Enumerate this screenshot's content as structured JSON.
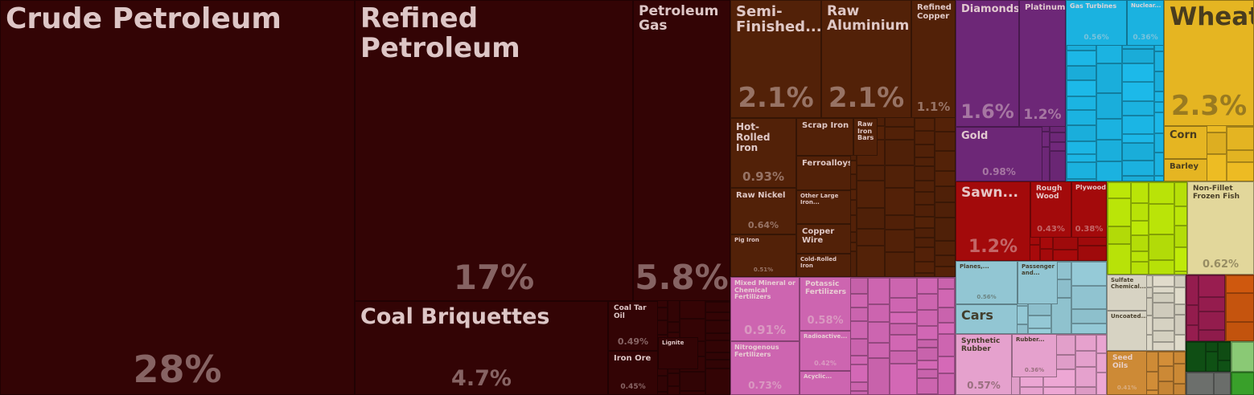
{
  "chart_data": {
    "type": "treemap",
    "title": "",
    "items": [
      {
        "name": "Crude Petroleum",
        "value": 28,
        "label": "28%",
        "group": "mineral"
      },
      {
        "name": "Refined Petroleum",
        "value": 17,
        "label": "17%",
        "group": "mineral"
      },
      {
        "name": "Petroleum Gas",
        "value": 5.8,
        "label": "5.8%",
        "group": "mineral"
      },
      {
        "name": "Coal Briquettes",
        "value": 4.7,
        "label": "4.7%",
        "group": "mineral"
      },
      {
        "name": "Coal Tar Oil",
        "value": 0.49,
        "label": "0.49%",
        "group": "mineral"
      },
      {
        "name": "Iron Ore",
        "value": 0.45,
        "label": "0.45%",
        "group": "mineral"
      },
      {
        "name": "Lignite",
        "value": null,
        "label": "",
        "group": "mineral"
      },
      {
        "name": "Semi-Finished...",
        "value": 2.1,
        "label": "2.1%",
        "group": "metals"
      },
      {
        "name": "Raw Aluminium",
        "value": 2.1,
        "label": "2.1%",
        "group": "metals"
      },
      {
        "name": "Refined Copper",
        "value": 1.1,
        "label": "1.1%",
        "group": "metals"
      },
      {
        "name": "Hot-Rolled Iron",
        "value": 0.93,
        "label": "0.93%",
        "group": "metals"
      },
      {
        "name": "Scrap Iron",
        "value": null,
        "label": "",
        "group": "metals"
      },
      {
        "name": "Raw Iron Bars",
        "value": null,
        "label": "",
        "group": "metals"
      },
      {
        "name": "Ferroalloys",
        "value": null,
        "label": "",
        "group": "metals"
      },
      {
        "name": "Raw Nickel",
        "value": 0.64,
        "label": "0.64%",
        "group": "metals"
      },
      {
        "name": "Other Large Iron...",
        "value": null,
        "label": "",
        "group": "metals"
      },
      {
        "name": "Copper Wire",
        "value": null,
        "label": "",
        "group": "metals"
      },
      {
        "name": "Pig Iron",
        "value": 0.51,
        "label": "0.51%",
        "group": "metals"
      },
      {
        "name": "Cold-Rolled Iron",
        "value": null,
        "label": "",
        "group": "metals"
      },
      {
        "name": "Diamonds",
        "value": 1.6,
        "label": "1.6%",
        "group": "precious"
      },
      {
        "name": "Platinum",
        "value": 1.2,
        "label": "1.2%",
        "group": "precious"
      },
      {
        "name": "Gold",
        "value": 0.98,
        "label": "0.98%",
        "group": "precious"
      },
      {
        "name": "Gas Turbines",
        "value": 0.56,
        "label": "0.56%",
        "group": "machines"
      },
      {
        "name": "Nuclear...",
        "value": 0.36,
        "label": "0.36%",
        "group": "machines"
      },
      {
        "name": "Wheat",
        "value": 2.3,
        "label": "2.3%",
        "group": "vegetable"
      },
      {
        "name": "Corn",
        "value": null,
        "label": "",
        "group": "vegetable"
      },
      {
        "name": "Barley",
        "value": null,
        "label": "",
        "group": "vegetable"
      },
      {
        "name": "Sawn...",
        "value": 1.2,
        "label": "1.2%",
        "group": "wood"
      },
      {
        "name": "Rough Wood",
        "value": 0.43,
        "label": "0.43%",
        "group": "wood"
      },
      {
        "name": "Plywood",
        "value": 0.38,
        "label": "0.38%",
        "group": "wood"
      },
      {
        "name": "Non-Fillet Frozen Fish",
        "value": 0.62,
        "label": "0.62%",
        "group": "animal"
      },
      {
        "name": "Mixed Mineral or Chemical Fertilizers",
        "value": 0.91,
        "label": "0.91%",
        "group": "chemical"
      },
      {
        "name": "Potassic Fertilizers",
        "value": 0.58,
        "label": "0.58%",
        "group": "chemical"
      },
      {
        "name": "Radioactive...",
        "value": 0.42,
        "label": "0.42%",
        "group": "chemical"
      },
      {
        "name": "Nitrogenous Fertilizers",
        "value": 0.73,
        "label": "0.73%",
        "group": "chemical"
      },
      {
        "name": "Acyclic...",
        "value": null,
        "label": "",
        "group": "chemical"
      },
      {
        "name": "Planes,...",
        "value": 0.56,
        "label": "0.56%",
        "group": "transport"
      },
      {
        "name": "Passenger and...",
        "value": null,
        "label": "",
        "group": "transport"
      },
      {
        "name": "Cars",
        "value": null,
        "label": "",
        "group": "transport"
      },
      {
        "name": "Synthetic Rubber",
        "value": 0.57,
        "label": "0.57%",
        "group": "plastics"
      },
      {
        "name": "Rubber...",
        "value": 0.36,
        "label": "0.36%",
        "group": "plastics"
      },
      {
        "name": "Sulfate Chemical...",
        "value": null,
        "label": "",
        "group": "stone"
      },
      {
        "name": "Uncoated...",
        "value": null,
        "label": "",
        "group": "stone"
      },
      {
        "name": "Seed Oils",
        "value": 0.41,
        "label": "0.41%",
        "group": "oils"
      }
    ],
    "colors": {
      "mineral": "#330405",
      "metals": "#522108",
      "precious": "#6d2777",
      "machines": "#1bb2e0",
      "vegetable": "#e5b522",
      "wood": "#a30a0b",
      "animal": "#e2d79b",
      "chemical": "#cd65b0",
      "transport": "#92c6d3",
      "plastics": "#e5a1cd",
      "stone": "#d7d3c3",
      "oils": "#cd8a36",
      "textiles": "#b8e208",
      "foodstuffs": "#931c4d",
      "footwear": "#c9560e",
      "instruments": "#0f4f14",
      "misc": "#6b6e6b",
      "arms": "#3ba62c",
      "electronics": "#8fd17a"
    }
  }
}
